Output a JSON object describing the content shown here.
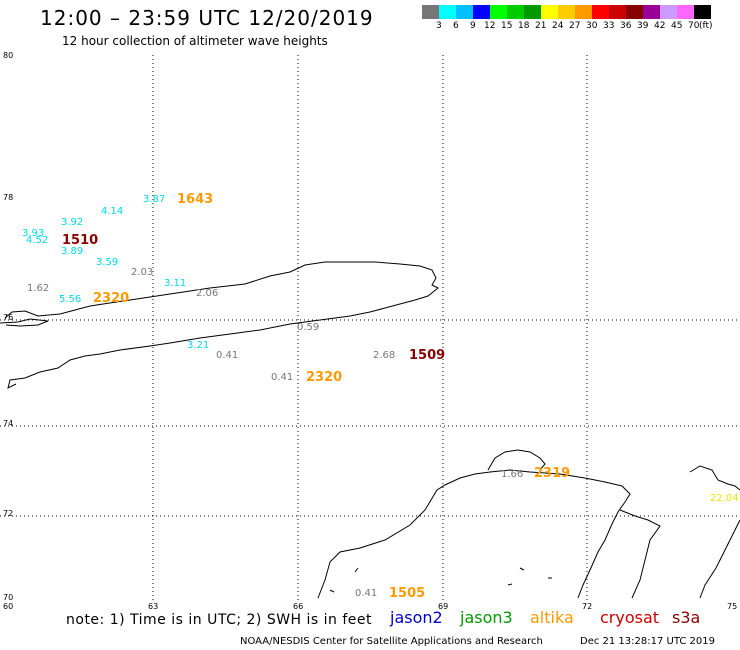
{
  "header": {
    "title": "12:00 – 23:59 UTC 12/20/2019",
    "subtitle": "12 hour collection of altimeter wave heights"
  },
  "colorbar": {
    "colors": [
      "#777777",
      "#00ffff",
      "#00bfff",
      "#0000ff",
      "#00ff00",
      "#00cc00",
      "#009900",
      "#ffff00",
      "#ffcc00",
      "#ff9900",
      "#ff0000",
      "#cc0000",
      "#880000",
      "#990099",
      "#cc99ff",
      "#ff66ff",
      "#000000"
    ],
    "labels": [
      "3",
      "6",
      "9",
      "12",
      "15",
      "18",
      "21",
      "24",
      "27",
      "30",
      "33",
      "36",
      "39",
      "42",
      "45",
      "70",
      "(ft)"
    ]
  },
  "axes": {
    "lat_labels": [
      "80",
      "78",
      "76",
      "74",
      "72",
      "70"
    ],
    "lon_labels": [
      "60",
      "63",
      "66",
      "69",
      "72",
      "75"
    ]
  },
  "observations": [
    {
      "value": "3.87",
      "color": "#00d8e8"
    },
    {
      "value": "1643",
      "color": "#ff9900"
    },
    {
      "value": "4.14",
      "color": "#00d8e8"
    },
    {
      "value": "3.92",
      "color": "#00d8e8"
    },
    {
      "value": "3.93",
      "color": "#00d8e8"
    },
    {
      "value": "4.52",
      "color": "#00d8e8"
    },
    {
      "value": "1510",
      "color": "#880000"
    },
    {
      "value": "3.89",
      "color": "#00d8e8"
    },
    {
      "value": "3.59",
      "color": "#00d8e8"
    },
    {
      "value": "2.03",
      "color": "#777777"
    },
    {
      "value": "1.62",
      "color": "#777777"
    },
    {
      "value": "3.11",
      "color": "#00d8e8"
    },
    {
      "value": "2.06",
      "color": "#777777"
    },
    {
      "value": "5.56",
      "color": "#00d8e8"
    },
    {
      "value": "2320",
      "color": "#ff9900"
    },
    {
      "value": "0.59",
      "color": "#777777"
    },
    {
      "value": "3.21",
      "color": "#00d8e8"
    },
    {
      "value": "0.41",
      "color": "#777777"
    },
    {
      "value": "2.68",
      "color": "#777777"
    },
    {
      "value": "1509",
      "color": "#880000"
    },
    {
      "value": "0.41",
      "color": "#777777"
    },
    {
      "value": "2320",
      "color": "#ff9900"
    },
    {
      "value": "1.66",
      "color": "#777777"
    },
    {
      "value": "2319",
      "color": "#ff9900"
    },
    {
      "value": "22.04",
      "color": "#e8e800"
    },
    {
      "value": "0.41",
      "color": "#777777"
    },
    {
      "value": "1505",
      "color": "#ff9900"
    }
  ],
  "footer": {
    "note": "note: 1) Time is in UTC; 2) SWH is in feet",
    "legend": [
      {
        "name": "jason2",
        "color": "#0000cc"
      },
      {
        "name": "jason3",
        "color": "#009900"
      },
      {
        "name": "altika",
        "color": "#ff9900"
      },
      {
        "name": "cryosat",
        "color": "#cc0000"
      },
      {
        "name": "s3a",
        "color": "#880000"
      }
    ],
    "credit": "NOAA/NESDIS Center for Satellite Applications and Research",
    "timestamp": "Dec 21 13:28:17 UTC 2019"
  }
}
